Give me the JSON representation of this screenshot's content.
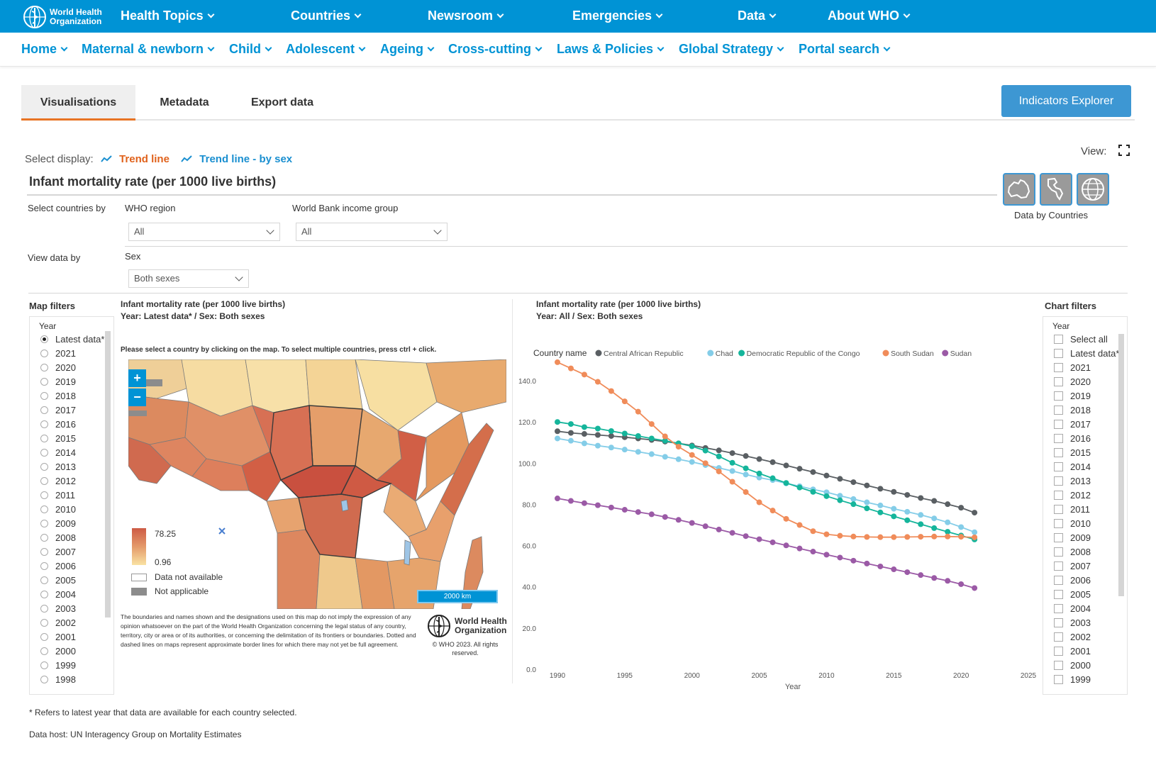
{
  "header": {
    "logo_line1": "World Health",
    "logo_line2": "Organization",
    "nav": [
      "Health Topics",
      "Countries",
      "Newsroom",
      "Emergencies",
      "Data",
      "About WHO"
    ]
  },
  "subnav": [
    "Home",
    "Maternal & newborn",
    "Child",
    "Adolescent",
    "Ageing",
    "Cross-cutting",
    "Laws & Policies",
    "Global Strategy",
    "Portal search"
  ],
  "tabs": [
    "Visualisations",
    "Metadata",
    "Export data"
  ],
  "explorer_button": "Indicators Explorer",
  "display": {
    "label": "Select display:",
    "option1": "Trend line",
    "option2": "Trend line - by sex",
    "option1_color": "#e0621c",
    "option2_color": "#1a8fd0"
  },
  "view_label": "View:",
  "page_title": "Infant mortality rate (per 1000 live births)",
  "view_toggle_caption": "Data by Countries",
  "filters": {
    "select_countries_by": "Select countries by",
    "who_region_label": "WHO region",
    "who_region_value": "All",
    "income_label": "World Bank income group",
    "income_value": "All",
    "view_data_by": "View data by",
    "sex_label": "Sex",
    "sex_value": "Both sexes"
  },
  "map_filters": {
    "title": "Map filters",
    "year_title": "Year",
    "options": [
      "Latest data*",
      "2021",
      "2020",
      "2019",
      "2018",
      "2017",
      "2016",
      "2015",
      "2014",
      "2013",
      "2012",
      "2011",
      "2010",
      "2009",
      "2008",
      "2007",
      "2006",
      "2005",
      "2004",
      "2003",
      "2002",
      "2001",
      "2000",
      "1999",
      "1998"
    ],
    "selected": "Latest data*"
  },
  "map": {
    "title": "Infant mortality rate (per 1000 live births)",
    "subtitle": "Year: Latest data* / Sex: Both sexes",
    "instruction": "Please select a country by clicking on the map. To select multiple countries, press ctrl + click.",
    "legend_max": "78.25",
    "legend_min": "0.96",
    "legend_na": "Data not available",
    "legend_notapp": "Not applicable",
    "scale": "2000 km",
    "disclaimer": "The boundaries and names shown and the designations used on this map do not imply the expression of any opinion whatsoever on the part of the World Health Organization concerning the legal status of any country, territory, city or area or of its authorities, or concerning the delimitation of its frontiers or boundaries. Dotted and dashed lines on maps represent approximate border lines for which there may not yet be full agreement.",
    "copyright": "© WHO 2023. All rights reserved.",
    "zoom_in": "+",
    "zoom_out": "−",
    "colors": {
      "high": "#cd5b45",
      "mid": "#e49a6a",
      "low": "#f9e2a3",
      "na": "#ffffff",
      "notapp": "#8c8c8c"
    }
  },
  "chart_panel": {
    "title": "Infant mortality rate (per 1000 live births)",
    "subtitle": "Year: All / Sex: Both sexes",
    "legend_title": "Country name"
  },
  "chart_filters": {
    "title": "Chart filters",
    "year_title": "Year",
    "options": [
      "Select all",
      "Latest data*",
      "2021",
      "2020",
      "2019",
      "2018",
      "2017",
      "2016",
      "2015",
      "2014",
      "2013",
      "2012",
      "2011",
      "2010",
      "2009",
      "2008",
      "2007",
      "2006",
      "2005",
      "2004",
      "2003",
      "2002",
      "2001",
      "2000",
      "1999"
    ]
  },
  "footnotes": {
    "latest": "* Refers to latest year that data are available for each country selected.",
    "host": "Data host: UN Interagency Group on Mortality Estimates"
  },
  "chart_data": {
    "type": "line",
    "title": "",
    "xlabel": "Year",
    "ylabel": "",
    "xlim": [
      1990,
      2025
    ],
    "ylim": [
      0,
      150
    ],
    "x_ticks": [
      1990,
      1995,
      2000,
      2005,
      2010,
      2015,
      2020,
      2025
    ],
    "y_ticks": [
      0,
      20,
      40,
      60,
      80,
      100,
      120,
      140
    ],
    "y_tick_labels": [
      "0.0",
      "20.0",
      "40.0",
      "60.0",
      "80.0",
      "100.0",
      "120.0",
      "140.0"
    ],
    "legend_position": "top",
    "x": [
      1990,
      1991,
      1992,
      1993,
      1994,
      1995,
      1996,
      1997,
      1998,
      1999,
      2000,
      2001,
      2002,
      2003,
      2004,
      2005,
      2006,
      2007,
      2008,
      2009,
      2010,
      2011,
      2012,
      2013,
      2014,
      2015,
      2016,
      2017,
      2018,
      2019,
      2020,
      2021
    ],
    "series": [
      {
        "name": "Central African Republic",
        "color": "#5a5f63",
        "values": [
          115.5,
          114.7,
          114.2,
          113.7,
          113.2,
          112.6,
          112.0,
          111.3,
          110.5,
          109.6,
          108.6,
          107.4,
          106.2,
          104.9,
          103.5,
          102.0,
          100.5,
          98.9,
          97.3,
          95.7,
          94.0,
          92.4,
          90.8,
          89.2,
          87.6,
          86.1,
          84.6,
          83.1,
          81.7,
          80.1,
          78.4,
          76.0
        ]
      },
      {
        "name": "Chad",
        "color": "#84cde8",
        "values": [
          112.0,
          110.9,
          109.6,
          108.5,
          107.6,
          106.6,
          105.5,
          104.4,
          103.1,
          101.9,
          100.6,
          99.1,
          97.7,
          96.2,
          94.5,
          93.0,
          91.8,
          90.2,
          88.8,
          87.3,
          85.9,
          84.2,
          82.6,
          81.0,
          79.5,
          77.9,
          76.4,
          74.9,
          73.2,
          71.3,
          69.0,
          66.5
        ]
      },
      {
        "name": "Democratic Republic of the Congo",
        "color": "#15b59b",
        "values": [
          120.0,
          119.0,
          117.5,
          116.8,
          115.6,
          114.4,
          113.2,
          112.0,
          110.9,
          109.6,
          108.2,
          106.1,
          103.3,
          100.2,
          97.5,
          95.0,
          92.7,
          90.4,
          88.2,
          86.1,
          84.0,
          82.0,
          80.1,
          78.1,
          76.1,
          74.2,
          72.3,
          70.4,
          68.5,
          66.7,
          64.9,
          63.0
        ]
      },
      {
        "name": "South Sudan",
        "color": "#f08c5a",
        "values": [
          149.0,
          146.0,
          143.0,
          139.5,
          135.0,
          130.0,
          125.0,
          119.0,
          113.0,
          108.0,
          104.0,
          100.0,
          96.0,
          91.0,
          86.0,
          81.0,
          77.0,
          73.0,
          70.0,
          67.0,
          65.5,
          64.8,
          64.4,
          64.2,
          64.1,
          64.1,
          64.2,
          64.3,
          64.4,
          64.4,
          64.3,
          64.0
        ]
      },
      {
        "name": "Sudan",
        "color": "#9b5aa6",
        "values": [
          82.9,
          81.7,
          80.6,
          79.6,
          78.5,
          77.4,
          76.3,
          75.2,
          73.9,
          72.5,
          71.0,
          69.4,
          67.8,
          66.2,
          64.6,
          63.1,
          61.6,
          60.1,
          58.6,
          57.1,
          55.6,
          54.2,
          52.7,
          51.3,
          49.9,
          48.5,
          47.1,
          45.7,
          44.3,
          42.9,
          41.3,
          39.4
        ]
      }
    ]
  }
}
